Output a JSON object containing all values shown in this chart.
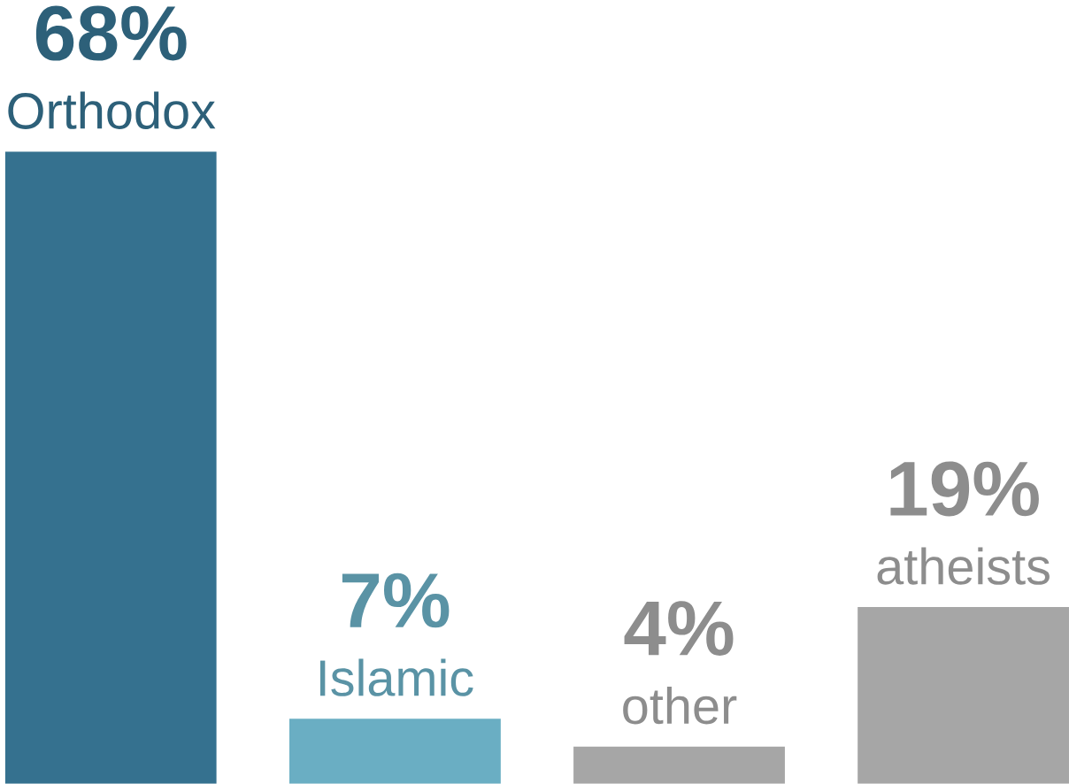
{
  "chart_data": {
    "type": "bar",
    "categories": [
      "Orthodox",
      "Islamic",
      "other",
      "atheists"
    ],
    "values": [
      68,
      7,
      4,
      19
    ],
    "value_labels": [
      "68%",
      "7%",
      "4%",
      "19%"
    ],
    "colors": [
      "#35718f",
      "#6aaec3",
      "#a6a6a6",
      "#a6a6a6"
    ]
  }
}
